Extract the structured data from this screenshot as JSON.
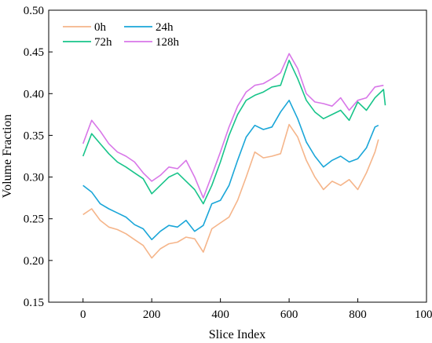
{
  "chart_data": {
    "type": "line",
    "title": "",
    "xlabel": "Slice Index",
    "ylabel": "Volume Fraction",
    "xlim": [
      -100,
      1000
    ],
    "ylim": [
      0.15,
      0.5
    ],
    "xticks": [
      0,
      200,
      400,
      600,
      800,
      1000
    ],
    "yticks": [
      "0.15",
      "0.20",
      "0.25",
      "0.30",
      "0.35",
      "0.40",
      "0.45",
      "0.50"
    ],
    "grid": false,
    "legend_position": "top-left",
    "series": [
      {
        "name": "0h",
        "color": "#f5b58a",
        "x": [
          0,
          25,
          50,
          75,
          100,
          125,
          150,
          175,
          200,
          225,
          250,
          275,
          300,
          325,
          350,
          375,
          400,
          425,
          450,
          475,
          500,
          525,
          550,
          575,
          600,
          625,
          650,
          675,
          700,
          725,
          750,
          775,
          800,
          825,
          850,
          860
        ],
        "y": [
          0.255,
          0.262,
          0.248,
          0.24,
          0.237,
          0.232,
          0.225,
          0.218,
          0.203,
          0.214,
          0.22,
          0.222,
          0.228,
          0.226,
          0.21,
          0.238,
          0.245,
          0.252,
          0.272,
          0.3,
          0.33,
          0.323,
          0.325,
          0.328,
          0.363,
          0.348,
          0.32,
          0.3,
          0.285,
          0.295,
          0.29,
          0.297,
          0.285,
          0.305,
          0.33,
          0.345
        ]
      },
      {
        "name": "24h",
        "color": "#1aa6d8",
        "x": [
          0,
          25,
          50,
          75,
          100,
          125,
          150,
          175,
          200,
          225,
          250,
          275,
          300,
          325,
          350,
          375,
          400,
          425,
          450,
          475,
          500,
          525,
          550,
          575,
          600,
          625,
          650,
          675,
          700,
          725,
          750,
          775,
          800,
          825,
          850,
          860
        ],
        "y": [
          0.29,
          0.282,
          0.268,
          0.262,
          0.257,
          0.252,
          0.243,
          0.238,
          0.225,
          0.235,
          0.242,
          0.24,
          0.248,
          0.235,
          0.242,
          0.268,
          0.272,
          0.29,
          0.32,
          0.348,
          0.362,
          0.357,
          0.36,
          0.378,
          0.392,
          0.37,
          0.342,
          0.325,
          0.312,
          0.32,
          0.325,
          0.318,
          0.322,
          0.335,
          0.36,
          0.362
        ]
      },
      {
        "name": "72h",
        "color": "#18c48a",
        "x": [
          0,
          25,
          50,
          75,
          100,
          125,
          150,
          175,
          200,
          225,
          250,
          275,
          300,
          325,
          350,
          375,
          400,
          425,
          450,
          475,
          500,
          525,
          550,
          575,
          600,
          625,
          650,
          675,
          700,
          725,
          750,
          775,
          800,
          825,
          850,
          875,
          880
        ],
        "y": [
          0.325,
          0.352,
          0.34,
          0.328,
          0.318,
          0.312,
          0.305,
          0.298,
          0.28,
          0.29,
          0.3,
          0.305,
          0.295,
          0.285,
          0.268,
          0.29,
          0.318,
          0.35,
          0.375,
          0.392,
          0.398,
          0.402,
          0.408,
          0.41,
          0.44,
          0.418,
          0.392,
          0.378,
          0.37,
          0.375,
          0.38,
          0.368,
          0.39,
          0.38,
          0.395,
          0.405,
          0.386
        ]
      },
      {
        "name": "128h",
        "color": "#d877e8",
        "x": [
          0,
          25,
          50,
          75,
          100,
          125,
          150,
          175,
          200,
          225,
          250,
          275,
          300,
          325,
          350,
          375,
          400,
          425,
          450,
          475,
          500,
          525,
          550,
          575,
          600,
          625,
          650,
          675,
          700,
          725,
          750,
          775,
          800,
          825,
          850,
          875
        ],
        "y": [
          0.34,
          0.368,
          0.355,
          0.34,
          0.33,
          0.325,
          0.318,
          0.305,
          0.295,
          0.302,
          0.312,
          0.31,
          0.32,
          0.3,
          0.275,
          0.302,
          0.33,
          0.36,
          0.385,
          0.402,
          0.41,
          0.412,
          0.418,
          0.425,
          0.448,
          0.43,
          0.4,
          0.39,
          0.388,
          0.385,
          0.395,
          0.38,
          0.392,
          0.395,
          0.408,
          0.41
        ]
      }
    ]
  }
}
